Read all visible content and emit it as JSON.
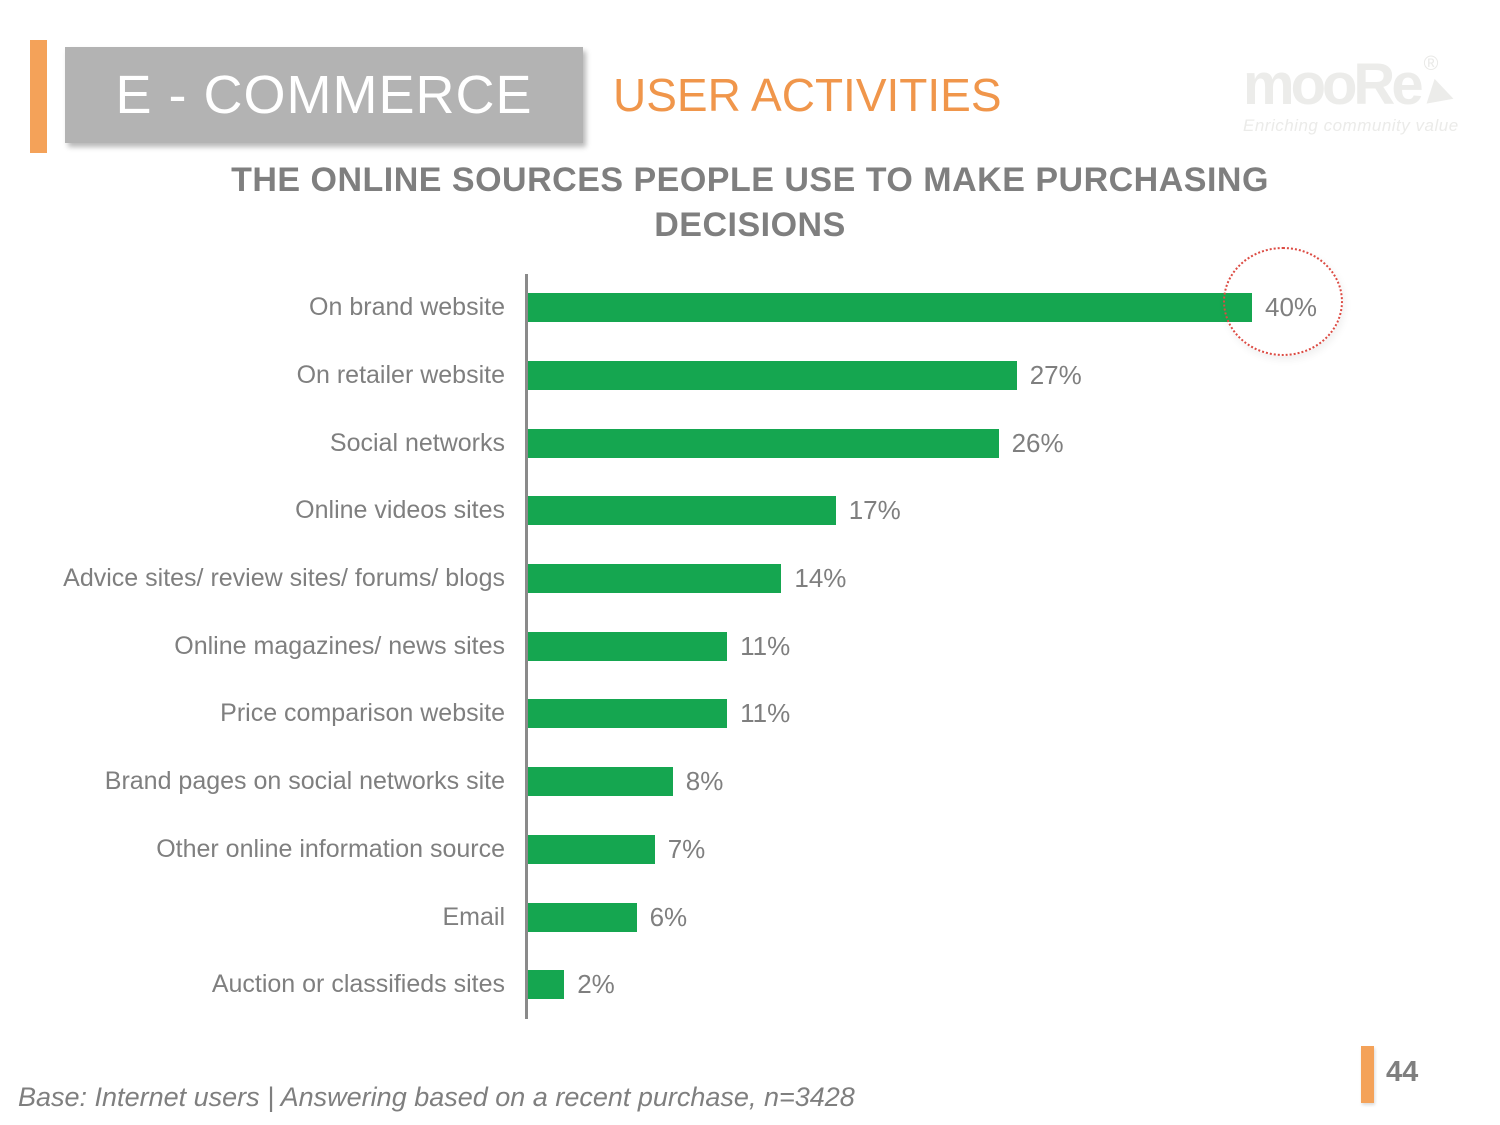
{
  "header": {
    "category_label": "E - COMMERCE",
    "section_label": "USER ACTIVITIES"
  },
  "logo": {
    "brand": "mooRe",
    "registered_mark": "®",
    "tagline": "Enriching community value"
  },
  "chart_data": {
    "type": "bar",
    "orientation": "horizontal",
    "title": "THE ONLINE SOURCES PEOPLE USE TO MAKE PURCHASING DECISIONS",
    "categories": [
      "On brand website",
      "On retailer website",
      "Social networks",
      "Online videos sites",
      "Advice sites/ review sites/ forums/ blogs",
      "Online magazines/ news sites",
      "Price comparison website",
      "Brand pages on social networks site",
      "Other online information source",
      "Email",
      "Auction or classifieds sites"
    ],
    "values": [
      40,
      27,
      26,
      17,
      14,
      11,
      11,
      8,
      7,
      6,
      2
    ],
    "value_suffix": "%",
    "xlim": [
      0,
      42
    ],
    "grid": false,
    "legend": false,
    "bar_color": "#15A650",
    "highlight": {
      "category": "On brand website",
      "value": 40,
      "marker": "dotted-red-circle"
    }
  },
  "footer": {
    "base_note": "Base: Internet users | Answering based on a recent purchase, n=3428",
    "page_number": "44"
  },
  "colors": {
    "accent_orange": "#F4A259",
    "section_orange": "#F0964B",
    "bar_green": "#15A650",
    "header_box_gray": "#B3B3B3",
    "text_gray": "#7F7F7F",
    "axis_gray": "#8A8A8A",
    "highlight_red": "#DC4B43",
    "logo_gray": "#ECECEA"
  }
}
